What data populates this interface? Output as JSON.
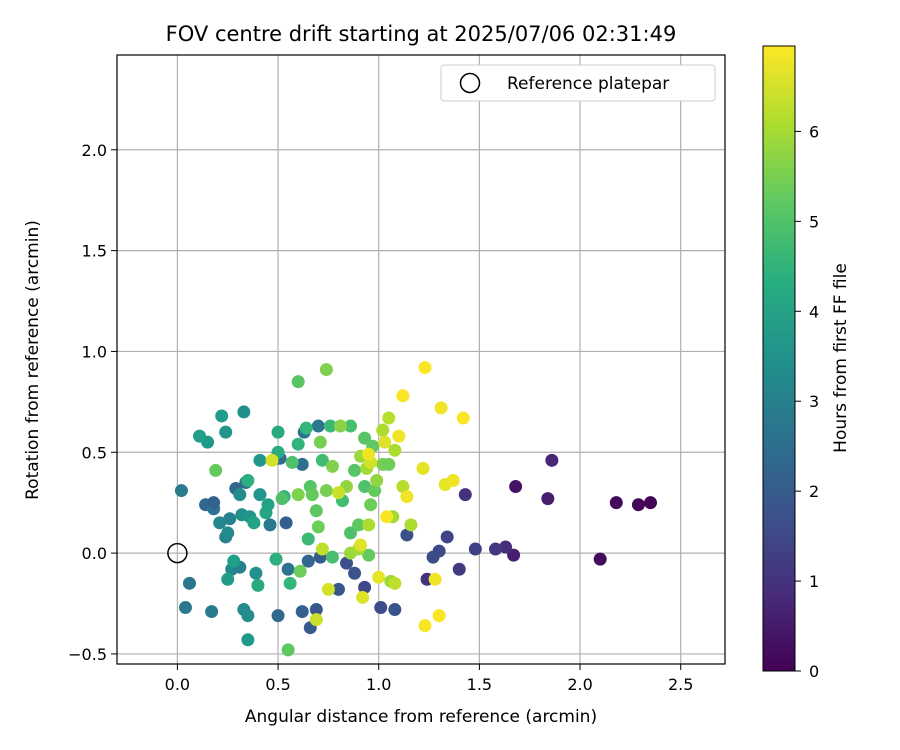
{
  "chart_data": {
    "type": "scatter",
    "title": "FOV centre drift starting at 2025/07/06 02:31:49",
    "xlabel": "Angular distance from reference (arcmin)",
    "ylabel": "Rotation from reference (arcmin)",
    "xlim": [
      -0.3,
      2.72
    ],
    "ylim": [
      -0.55,
      2.47
    ],
    "x_ticks": [
      "0.0",
      "0.5",
      "1.0",
      "1.5",
      "2.0",
      "2.5"
    ],
    "x_tick_values": [
      0,
      0.5,
      1.0,
      1.5,
      2.0,
      2.5
    ],
    "y_ticks": [
      "−0.5",
      "0.0",
      "0.5",
      "1.0",
      "1.5",
      "2.0"
    ],
    "y_tick_values": [
      -0.5,
      0,
      0.5,
      1.0,
      1.5,
      2.0
    ],
    "grid": true,
    "legend": {
      "label": "Reference platepar",
      "placement": "top-right"
    },
    "reference_point": {
      "x": 0.0,
      "y": 0.0
    },
    "colorbar": {
      "label": "Hours from first FF file",
      "colormap": "viridis",
      "range": [
        0,
        6.95
      ],
      "ticks": [
        "0",
        "1",
        "2",
        "3",
        "4",
        "5",
        "6"
      ],
      "tick_values": [
        0,
        1,
        2,
        3,
        4,
        5,
        6
      ]
    },
    "points": [
      {
        "x": 2.35,
        "y": 0.25,
        "h": 0.05
      },
      {
        "x": 2.29,
        "y": 0.24,
        "h": 0.1
      },
      {
        "x": 2.18,
        "y": 0.25,
        "h": 0.15
      },
      {
        "x": 2.1,
        "y": -0.03,
        "h": 0.2
      },
      {
        "x": 1.84,
        "y": 0.27,
        "h": 0.55
      },
      {
        "x": 1.86,
        "y": 0.46,
        "h": 0.75
      },
      {
        "x": 1.68,
        "y": 0.33,
        "h": 0.35
      },
      {
        "x": 1.67,
        "y": -0.01,
        "h": 0.6
      },
      {
        "x": 1.63,
        "y": 0.03,
        "h": 0.9
      },
      {
        "x": 1.58,
        "y": 0.02,
        "h": 1.1
      },
      {
        "x": 1.48,
        "y": 0.02,
        "h": 1.3
      },
      {
        "x": 1.43,
        "y": 0.29,
        "h": 1.0
      },
      {
        "x": 1.4,
        "y": -0.08,
        "h": 1.2
      },
      {
        "x": 1.34,
        "y": 0.08,
        "h": 1.4
      },
      {
        "x": 1.3,
        "y": 0.01,
        "h": 1.5
      },
      {
        "x": 1.27,
        "y": -0.02,
        "h": 1.6
      },
      {
        "x": 1.24,
        "y": -0.13,
        "h": 1.0
      },
      {
        "x": 1.14,
        "y": 0.09,
        "h": 1.7
      },
      {
        "x": 1.08,
        "y": -0.28,
        "h": 1.8
      },
      {
        "x": 1.01,
        "y": -0.27,
        "h": 1.6
      },
      {
        "x": 0.93,
        "y": -0.17,
        "h": 1.5
      },
      {
        "x": 0.88,
        "y": -0.1,
        "h": 1.8
      },
      {
        "x": 0.84,
        "y": -0.05,
        "h": 1.7
      },
      {
        "x": 0.8,
        "y": -0.18,
        "h": 1.9
      },
      {
        "x": 0.71,
        "y": -0.02,
        "h": 2.0
      },
      {
        "x": 0.69,
        "y": -0.28,
        "h": 1.9
      },
      {
        "x": 0.66,
        "y": -0.37,
        "h": 2.0
      },
      {
        "x": 0.62,
        "y": -0.29,
        "h": 2.2
      },
      {
        "x": 0.65,
        "y": -0.04,
        "h": 2.3
      },
      {
        "x": 0.55,
        "y": -0.08,
        "h": 2.6
      },
      {
        "x": 0.5,
        "y": -0.31,
        "h": 2.4
      },
      {
        "x": 0.54,
        "y": 0.15,
        "h": 2.1
      },
      {
        "x": 0.49,
        "y": 0.47,
        "h": 2.2
      },
      {
        "x": 0.51,
        "y": 0.47,
        "h": 2.4
      },
      {
        "x": 0.62,
        "y": 0.44,
        "h": 2.5
      },
      {
        "x": 0.63,
        "y": 0.6,
        "h": 2.6
      },
      {
        "x": 0.7,
        "y": 0.63,
        "h": 2.7
      },
      {
        "x": 0.46,
        "y": 0.14,
        "h": 2.8
      },
      {
        "x": 0.34,
        "y": 0.35,
        "h": 2.6
      },
      {
        "x": 0.29,
        "y": 0.32,
        "h": 2.4
      },
      {
        "x": 0.14,
        "y": 0.24,
        "h": 2.3
      },
      {
        "x": 0.18,
        "y": 0.22,
        "h": 2.6
      },
      {
        "x": 0.18,
        "y": 0.25,
        "h": 2.2
      },
      {
        "x": 0.06,
        "y": -0.15,
        "h": 2.7
      },
      {
        "x": 0.04,
        "y": -0.27,
        "h": 2.8
      },
      {
        "x": 0.02,
        "y": 0.31,
        "h": 2.9
      },
      {
        "x": 0.17,
        "y": -0.29,
        "h": 2.9
      },
      {
        "x": 0.24,
        "y": 0.08,
        "h": 3.1
      },
      {
        "x": 0.27,
        "y": -0.08,
        "h": 3.2
      },
      {
        "x": 0.31,
        "y": -0.07,
        "h": 3.0
      },
      {
        "x": 0.33,
        "y": -0.28,
        "h": 3.3
      },
      {
        "x": 0.35,
        "y": -0.31,
        "h": 3.4
      },
      {
        "x": 0.39,
        "y": -0.1,
        "h": 3.5
      },
      {
        "x": 0.41,
        "y": 0.29,
        "h": 3.6
      },
      {
        "x": 0.41,
        "y": 0.46,
        "h": 3.7
      },
      {
        "x": 0.33,
        "y": 0.7,
        "h": 3.5
      },
      {
        "x": 0.22,
        "y": 0.68,
        "h": 3.8
      },
      {
        "x": 0.24,
        "y": 0.6,
        "h": 3.6
      },
      {
        "x": 0.15,
        "y": 0.55,
        "h": 3.7
      },
      {
        "x": 0.11,
        "y": 0.58,
        "h": 3.9
      },
      {
        "x": 0.21,
        "y": 0.15,
        "h": 3.2
      },
      {
        "x": 0.25,
        "y": 0.1,
        "h": 3.3
      },
      {
        "x": 0.26,
        "y": 0.17,
        "h": 3.1
      },
      {
        "x": 0.31,
        "y": 0.29,
        "h": 3.4
      },
      {
        "x": 0.32,
        "y": 0.19,
        "h": 3.5
      },
      {
        "x": 0.36,
        "y": 0.18,
        "h": 3.6
      },
      {
        "x": 0.35,
        "y": -0.43,
        "h": 3.7
      },
      {
        "x": 0.25,
        "y": -0.13,
        "h": 3.8
      },
      {
        "x": 0.28,
        "y": -0.04,
        "h": 3.9
      },
      {
        "x": 0.38,
        "y": 0.15,
        "h": 4.0
      },
      {
        "x": 0.44,
        "y": 0.2,
        "h": 4.1
      },
      {
        "x": 0.45,
        "y": 0.24,
        "h": 4.0
      },
      {
        "x": 0.4,
        "y": -0.16,
        "h": 4.2
      },
      {
        "x": 0.5,
        "y": 0.5,
        "h": 4.3
      },
      {
        "x": 0.5,
        "y": 0.6,
        "h": 4.2
      },
      {
        "x": 0.49,
        "y": -0.03,
        "h": 4.4
      },
      {
        "x": 0.53,
        "y": 0.28,
        "h": 4.5
      },
      {
        "x": 0.35,
        "y": 0.36,
        "h": 4.4
      },
      {
        "x": 0.56,
        "y": -0.15,
        "h": 4.6
      },
      {
        "x": 0.6,
        "y": 0.54,
        "h": 4.5
      },
      {
        "x": 0.64,
        "y": 0.62,
        "h": 4.6
      },
      {
        "x": 0.65,
        "y": 0.07,
        "h": 4.7
      },
      {
        "x": 0.72,
        "y": 0.46,
        "h": 4.8
      },
      {
        "x": 0.76,
        "y": 0.63,
        "h": 4.7
      },
      {
        "x": 0.77,
        "y": -0.02,
        "h": 4.9
      },
      {
        "x": 0.82,
        "y": 0.26,
        "h": 4.8
      },
      {
        "x": 0.86,
        "y": 0.63,
        "h": 4.9
      },
      {
        "x": 0.86,
        "y": 0.1,
        "h": 5.0
      },
      {
        "x": 0.88,
        "y": 0.41,
        "h": 5.1
      },
      {
        "x": 0.9,
        "y": 0.14,
        "h": 5.2
      },
      {
        "x": 0.93,
        "y": 0.33,
        "h": 5.0
      },
      {
        "x": 0.93,
        "y": 0.57,
        "h": 5.1
      },
      {
        "x": 0.95,
        "y": -0.01,
        "h": 5.3
      },
      {
        "x": 0.96,
        "y": 0.24,
        "h": 5.4
      },
      {
        "x": 0.97,
        "y": 0.53,
        "h": 5.2
      },
      {
        "x": 0.98,
        "y": 0.31,
        "h": 5.3
      },
      {
        "x": 1.02,
        "y": 0.44,
        "h": 5.5
      },
      {
        "x": 1.05,
        "y": 0.44,
        "h": 5.4
      },
      {
        "x": 0.57,
        "y": 0.45,
        "h": 5.0
      },
      {
        "x": 0.6,
        "y": 0.85,
        "h": 5.1
      },
      {
        "x": 0.74,
        "y": 0.91,
        "h": 5.6
      },
      {
        "x": 0.19,
        "y": 0.41,
        "h": 5.3
      },
      {
        "x": 0.55,
        "y": -0.48,
        "h": 5.2
      },
      {
        "x": 0.61,
        "y": -0.09,
        "h": 5.4
      },
      {
        "x": 0.52,
        "y": 0.27,
        "h": 5.0
      },
      {
        "x": 0.66,
        "y": 0.33,
        "h": 5.1
      },
      {
        "x": 0.69,
        "y": 0.21,
        "h": 5.2
      },
      {
        "x": 0.67,
        "y": 0.29,
        "h": 5.3
      },
      {
        "x": 0.7,
        "y": 0.13,
        "h": 5.4
      },
      {
        "x": 0.71,
        "y": 0.55,
        "h": 5.5
      },
      {
        "x": 0.6,
        "y": 0.29,
        "h": 5.6
      },
      {
        "x": 0.74,
        "y": 0.31,
        "h": 5.5
      },
      {
        "x": 0.77,
        "y": 0.43,
        "h": 5.6
      },
      {
        "x": 0.81,
        "y": 0.63,
        "h": 5.7
      },
      {
        "x": 0.84,
        "y": 0.33,
        "h": 5.8
      },
      {
        "x": 0.86,
        "y": 0.0,
        "h": 5.9
      },
      {
        "x": 0.9,
        "y": 0.02,
        "h": 6.0
      },
      {
        "x": 0.91,
        "y": 0.48,
        "h": 5.9
      },
      {
        "x": 0.94,
        "y": 0.42,
        "h": 6.0
      },
      {
        "x": 0.95,
        "y": 0.14,
        "h": 6.1
      },
      {
        "x": 0.99,
        "y": 0.36,
        "h": 5.8
      },
      {
        "x": 1.02,
        "y": 0.61,
        "h": 6.1
      },
      {
        "x": 1.05,
        "y": 0.67,
        "h": 6.2
      },
      {
        "x": 1.06,
        "y": -0.14,
        "h": 5.9
      },
      {
        "x": 1.07,
        "y": 0.18,
        "h": 6.0
      },
      {
        "x": 1.08,
        "y": 0.51,
        "h": 6.1
      },
      {
        "x": 1.08,
        "y": -0.15,
        "h": 6.3
      },
      {
        "x": 1.12,
        "y": 0.33,
        "h": 6.2
      },
      {
        "x": 1.16,
        "y": 0.14,
        "h": 6.1
      },
      {
        "x": 0.72,
        "y": 0.02,
        "h": 6.3
      },
      {
        "x": 0.69,
        "y": -0.33,
        "h": 6.4
      },
      {
        "x": 0.75,
        "y": -0.18,
        "h": 6.5
      },
      {
        "x": 0.8,
        "y": 0.3,
        "h": 6.4
      },
      {
        "x": 0.47,
        "y": 0.46,
        "h": 6.5
      },
      {
        "x": 0.92,
        "y": -0.22,
        "h": 6.6
      },
      {
        "x": 0.96,
        "y": 0.45,
        "h": 6.5
      },
      {
        "x": 1.0,
        "y": -0.12,
        "h": 6.7
      },
      {
        "x": 1.03,
        "y": 0.55,
        "h": 6.6
      },
      {
        "x": 1.1,
        "y": 0.58,
        "h": 6.8
      },
      {
        "x": 1.12,
        "y": 0.78,
        "h": 6.9
      },
      {
        "x": 1.14,
        "y": 0.28,
        "h": 6.8
      },
      {
        "x": 1.22,
        "y": 0.42,
        "h": 6.7
      },
      {
        "x": 1.23,
        "y": -0.36,
        "h": 6.9
      },
      {
        "x": 1.23,
        "y": 0.92,
        "h": 6.9
      },
      {
        "x": 1.28,
        "y": -0.13,
        "h": 6.8
      },
      {
        "x": 1.3,
        "y": -0.31,
        "h": 6.9
      },
      {
        "x": 1.31,
        "y": 0.72,
        "h": 6.8
      },
      {
        "x": 1.33,
        "y": 0.34,
        "h": 6.7
      },
      {
        "x": 1.37,
        "y": 0.36,
        "h": 6.8
      },
      {
        "x": 1.42,
        "y": 0.67,
        "h": 6.9
      },
      {
        "x": 1.04,
        "y": 0.18,
        "h": 6.9
      },
      {
        "x": 0.95,
        "y": 0.49,
        "h": 6.8
      },
      {
        "x": 0.91,
        "y": 0.04,
        "h": 6.6
      }
    ]
  }
}
